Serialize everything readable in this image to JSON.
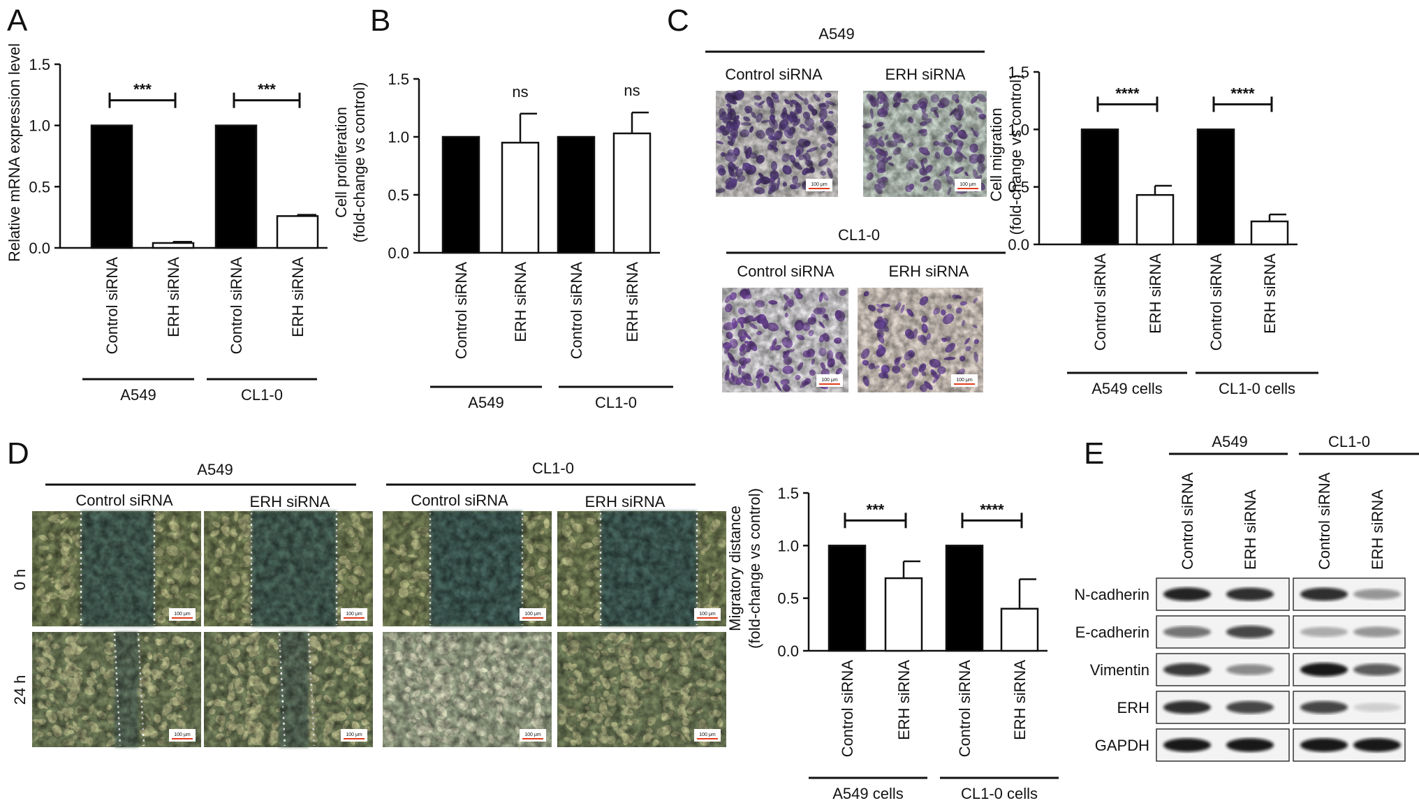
{
  "figure": {
    "panel_letters": [
      "A",
      "B",
      "C",
      "D",
      "E"
    ],
    "scale_bar_label": "100 μm"
  },
  "chart_data": [
    {
      "panel": "A",
      "type": "bar",
      "categories": [
        "Control siRNA",
        "ERH siRNA",
        "Control siRNA",
        "ERH siRNA"
      ],
      "groups": [
        {
          "label": "A549",
          "indices": [
            0,
            1
          ]
        },
        {
          "label": "CL1-0",
          "indices": [
            2,
            3
          ]
        }
      ],
      "values": [
        1.0,
        0.04,
        1.0,
        0.26
      ],
      "errors": [
        0,
        0.01,
        0,
        0.01
      ],
      "fills": [
        "#000000",
        "#ffffff",
        "#000000",
        "#ffffff"
      ],
      "ylabel": "Relative mRNA expression level",
      "ylim": [
        0,
        1.5
      ],
      "yticks": [
        0,
        0.5,
        1.0,
        1.5
      ],
      "significance": [
        {
          "pair": [
            0,
            1
          ],
          "label": "***"
        },
        {
          "pair": [
            2,
            3
          ],
          "label": "***"
        }
      ]
    },
    {
      "panel": "B",
      "type": "bar",
      "categories": [
        "Control siRNA",
        "ERH siRNA",
        "Control siRNA",
        "ERH siRNA"
      ],
      "groups": [
        {
          "label": "A549",
          "indices": [
            0,
            1
          ]
        },
        {
          "label": "CL1-0",
          "indices": [
            2,
            3
          ]
        }
      ],
      "values": [
        1.0,
        0.95,
        1.0,
        1.03
      ],
      "errors": [
        0,
        0.25,
        0,
        0.18
      ],
      "fills": [
        "#000000",
        "#ffffff",
        "#000000",
        "#ffffff"
      ],
      "ylabel": "Cell proliferation",
      "ylabel2": "(fold-change vs control)",
      "ylim": [
        0,
        1.5
      ],
      "yticks": [
        0,
        0.5,
        1.0,
        1.5
      ],
      "annotations": [
        {
          "bar": 1,
          "label": "ns"
        },
        {
          "bar": 3,
          "label": "ns"
        }
      ]
    },
    {
      "panel": "C",
      "type": "bar",
      "categories": [
        "Control siRNA",
        "ERH siRNA",
        "Control siRNA",
        "ERH siRNA"
      ],
      "groups": [
        {
          "label": "A549 cells",
          "indices": [
            0,
            1
          ]
        },
        {
          "label": "CL1-0 cells",
          "indices": [
            2,
            3
          ]
        }
      ],
      "values": [
        1.0,
        0.43,
        1.0,
        0.2
      ],
      "errors": [
        0,
        0.08,
        0,
        0.06
      ],
      "fills": [
        "#000000",
        "#ffffff",
        "#000000",
        "#ffffff"
      ],
      "ylabel": "Cell migration",
      "ylabel2": "(fold-change vs control)",
      "ylim": [
        0,
        1.5
      ],
      "yticks": [
        0,
        0.5,
        1.0,
        1.5
      ],
      "significance": [
        {
          "pair": [
            0,
            1
          ],
          "label": "****"
        },
        {
          "pair": [
            2,
            3
          ],
          "label": "****"
        }
      ]
    },
    {
      "panel": "D",
      "type": "bar",
      "categories": [
        "Control siRNA",
        "ERH siRNA",
        "Control siRNA",
        "ERH siRNA"
      ],
      "groups": [
        {
          "label": "A549 cells",
          "indices": [
            0,
            1
          ]
        },
        {
          "label": "CL1-0 cells",
          "indices": [
            2,
            3
          ]
        }
      ],
      "values": [
        1.0,
        0.69,
        1.0,
        0.4
      ],
      "errors": [
        0,
        0.16,
        0,
        0.28
      ],
      "fills": [
        "#000000",
        "#ffffff",
        "#000000",
        "#ffffff"
      ],
      "ylabel": "Migratory distance",
      "ylabel2": "(fold-change vs control)",
      "ylim": [
        0,
        1.5
      ],
      "yticks": [
        0,
        0.5,
        1.0,
        1.5
      ],
      "significance": [
        {
          "pair": [
            0,
            1
          ],
          "label": "***"
        },
        {
          "pair": [
            2,
            3
          ],
          "label": "****"
        }
      ]
    }
  ],
  "micrographs_c": {
    "groups": [
      "A549",
      "CL1-0"
    ],
    "conditions": [
      "Control siRNA",
      "ERH siRNA"
    ]
  },
  "micrographs_d": {
    "groups": [
      "A549",
      "CL1-0"
    ],
    "conditions": [
      "Control siRNA",
      "ERH siRNA"
    ],
    "timepoints": [
      "0 h",
      "24 h"
    ]
  },
  "western_blot": {
    "groups": [
      "A549",
      "CL1-0"
    ],
    "lanes": [
      "Control siRNA",
      "ERH siRNA"
    ],
    "proteins": [
      "N-cadherin",
      "E-cadherin",
      "Vimentin",
      "ERH",
      "GAPDH"
    ],
    "band_intensity": {
      "A549": [
        [
          0.9,
          0.85
        ],
        [
          0.55,
          0.75
        ],
        [
          0.8,
          0.45
        ],
        [
          0.85,
          0.75
        ],
        [
          0.95,
          0.95
        ]
      ],
      "CL1-0": [
        [
          0.85,
          0.4
        ],
        [
          0.3,
          0.4
        ],
        [
          0.95,
          0.65
        ],
        [
          0.75,
          0.15
        ],
        [
          0.95,
          0.95
        ]
      ]
    }
  }
}
